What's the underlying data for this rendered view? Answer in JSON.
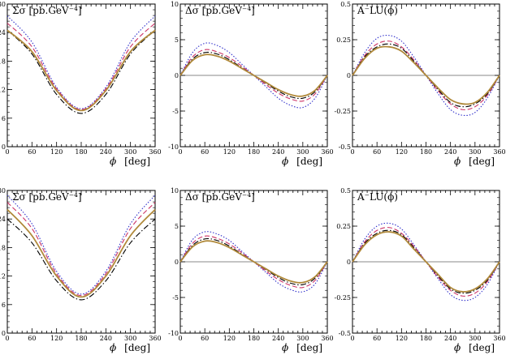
{
  "x_label": {
    "symbol": "ϕ",
    "unit": "[deg]"
  },
  "x_ticks": [
    "0",
    "60",
    "120",
    "180",
    "240",
    "300",
    "360"
  ],
  "series_styles": [
    {
      "color": "#3333cc",
      "dash": "1.5,2",
      "width": 1.1
    },
    {
      "color": "#cc3366",
      "dash": "6,3",
      "width": 1.1
    },
    {
      "color": "#000000",
      "dash": "7,2.5,1.5,2.5",
      "width": 1.1
    },
    {
      "color": "#b0893a",
      "dash": "",
      "width": 1.8
    }
  ],
  "chart_data": [
    {
      "type": "line",
      "title": "Σσ  [pb.GeV⁻⁴]",
      "xlim": [
        0,
        360
      ],
      "ylim": [
        0,
        30
      ],
      "y_ticks": [
        "0",
        "6",
        "12",
        "18",
        "24",
        "30"
      ],
      "y_tick_values": [
        0,
        6,
        12,
        18,
        24,
        30
      ],
      "x": [
        0,
        60,
        120,
        180,
        240,
        300,
        360
      ],
      "series": [
        {
          "values": [
            27.5,
            22.0,
            12.5,
            8.0,
            12.5,
            22.0,
            27.5
          ]
        },
        {
          "values": [
            26.0,
            21.0,
            12.2,
            7.8,
            12.2,
            21.0,
            26.0
          ]
        },
        {
          "values": [
            24.5,
            19.5,
            11.0,
            7.0,
            11.0,
            19.5,
            24.5
          ]
        },
        {
          "values": [
            24.5,
            20.0,
            11.8,
            7.6,
            11.8,
            20.0,
            24.5
          ]
        }
      ]
    },
    {
      "type": "line",
      "title": "Δσ  [pb.GeV⁻⁴]",
      "xlim": [
        0,
        360
      ],
      "ylim": [
        -10,
        10
      ],
      "y_ticks": [
        "-10",
        "-5",
        "0",
        "5",
        "10"
      ],
      "y_tick_values": [
        -10,
        -5,
        0,
        5,
        10
      ],
      "x": [
        0,
        30,
        60,
        90,
        120,
        150,
        180,
        210,
        240,
        270,
        300,
        330,
        360
      ],
      "series": [
        {
          "values": [
            0,
            3.2,
            4.5,
            4.2,
            3.2,
            1.6,
            0,
            -1.6,
            -3.2,
            -4.2,
            -4.5,
            -3.2,
            0
          ]
        },
        {
          "values": [
            0,
            2.6,
            3.6,
            3.3,
            2.5,
            1.3,
            0,
            -1.3,
            -2.5,
            -3.3,
            -3.6,
            -2.6,
            0
          ]
        },
        {
          "values": [
            0,
            2.3,
            3.2,
            3.0,
            2.2,
            1.1,
            0,
            -1.1,
            -2.2,
            -3.0,
            -3.2,
            -2.3,
            0
          ]
        },
        {
          "values": [
            0,
            2.1,
            2.9,
            2.7,
            2.0,
            1.0,
            0,
            -1.0,
            -2.0,
            -2.7,
            -2.9,
            -2.1,
            0
          ]
        }
      ]
    },
    {
      "type": "line",
      "title": "A⁻LU(ϕ)",
      "xlim": [
        0,
        360
      ],
      "ylim": [
        -0.5,
        0.5
      ],
      "y_ticks": [
        "-0.5",
        "-0.25",
        "0",
        "0.25",
        "0.5"
      ],
      "y_tick_values": [
        -0.5,
        -0.25,
        0,
        0.25,
        0.5
      ],
      "x": [
        0,
        30,
        60,
        90,
        120,
        150,
        180,
        210,
        240,
        270,
        300,
        330,
        360
      ],
      "series": [
        {
          "values": [
            0,
            0.16,
            0.26,
            0.28,
            0.24,
            0.13,
            0,
            -0.13,
            -0.24,
            -0.28,
            -0.26,
            -0.16,
            0
          ]
        },
        {
          "values": [
            0,
            0.14,
            0.22,
            0.24,
            0.2,
            0.11,
            0,
            -0.11,
            -0.2,
            -0.24,
            -0.22,
            -0.14,
            0
          ]
        },
        {
          "values": [
            0,
            0.13,
            0.2,
            0.22,
            0.19,
            0.1,
            0,
            -0.1,
            -0.19,
            -0.22,
            -0.2,
            -0.13,
            0
          ]
        },
        {
          "values": [
            0,
            0.12,
            0.19,
            0.2,
            0.17,
            0.09,
            0,
            -0.09,
            -0.17,
            -0.2,
            -0.19,
            -0.12,
            0
          ]
        }
      ]
    },
    {
      "type": "line",
      "title": "Σσ  [pb.GeV⁻⁴]",
      "xlim": [
        0,
        360
      ],
      "ylim": [
        0,
        30
      ],
      "y_ticks": [
        "0",
        "6",
        "12",
        "18",
        "24",
        "30"
      ],
      "y_tick_values": [
        0,
        6,
        12,
        18,
        24,
        30
      ],
      "x": [
        0,
        60,
        120,
        180,
        240,
        300,
        360
      ],
      "series": [
        {
          "values": [
            29.0,
            23.0,
            13.0,
            8.2,
            13.0,
            23.0,
            29.0
          ]
        },
        {
          "values": [
            27.5,
            22.0,
            12.5,
            7.9,
            12.5,
            22.0,
            27.5
          ]
        },
        {
          "values": [
            24.0,
            19.0,
            11.0,
            7.0,
            11.0,
            19.0,
            24.0
          ]
        },
        {
          "values": [
            26.0,
            20.5,
            12.0,
            7.6,
            12.0,
            20.5,
            26.0
          ]
        }
      ]
    },
    {
      "type": "line",
      "title": "Δσ  [pb.GeV⁻⁴]",
      "xlim": [
        0,
        360
      ],
      "ylim": [
        -10,
        10
      ],
      "y_ticks": [
        "-10",
        "-5",
        "0",
        "5",
        "10"
      ],
      "y_tick_values": [
        -10,
        -5,
        0,
        5,
        10
      ],
      "x": [
        0,
        30,
        60,
        90,
        120,
        150,
        180,
        210,
        240,
        270,
        300,
        330,
        360
      ],
      "series": [
        {
          "values": [
            0,
            3.1,
            4.2,
            3.9,
            3.0,
            1.5,
            0,
            -1.5,
            -3.0,
            -3.9,
            -4.2,
            -3.1,
            0
          ]
        },
        {
          "values": [
            0,
            2.6,
            3.6,
            3.3,
            2.5,
            1.3,
            0,
            -1.3,
            -2.5,
            -3.3,
            -3.6,
            -2.6,
            0
          ]
        },
        {
          "values": [
            0,
            2.3,
            3.2,
            3.0,
            2.2,
            1.1,
            0,
            -1.1,
            -2.2,
            -3.0,
            -3.2,
            -2.3,
            0
          ]
        },
        {
          "values": [
            0,
            2.1,
            2.9,
            2.7,
            2.0,
            1.0,
            0,
            -1.0,
            -2.0,
            -2.7,
            -2.9,
            -2.1,
            0
          ]
        }
      ]
    },
    {
      "type": "line",
      "title": "A⁻LU(ϕ)",
      "xlim": [
        0,
        360
      ],
      "ylim": [
        -0.5,
        0.5
      ],
      "y_ticks": [
        "-0.5",
        "-0.25",
        "0",
        "0.25",
        "0.5"
      ],
      "y_tick_values": [
        -0.5,
        -0.25,
        0,
        0.25,
        0.5
      ],
      "x": [
        0,
        30,
        60,
        90,
        120,
        150,
        180,
        210,
        240,
        270,
        300,
        330,
        360
      ],
      "series": [
        {
          "values": [
            0,
            0.16,
            0.25,
            0.27,
            0.23,
            0.12,
            0,
            -0.12,
            -0.23,
            -0.27,
            -0.25,
            -0.16,
            0
          ]
        },
        {
          "values": [
            0,
            0.14,
            0.22,
            0.24,
            0.2,
            0.11,
            0,
            -0.11,
            -0.2,
            -0.24,
            -0.22,
            -0.14,
            0
          ]
        },
        {
          "values": [
            0,
            0.13,
            0.2,
            0.22,
            0.19,
            0.1,
            0,
            -0.1,
            -0.19,
            -0.22,
            -0.2,
            -0.13,
            0
          ]
        },
        {
          "values": [
            0,
            0.12,
            0.19,
            0.21,
            0.18,
            0.09,
            0,
            -0.09,
            -0.18,
            -0.21,
            -0.19,
            -0.12,
            0
          ]
        }
      ]
    }
  ]
}
